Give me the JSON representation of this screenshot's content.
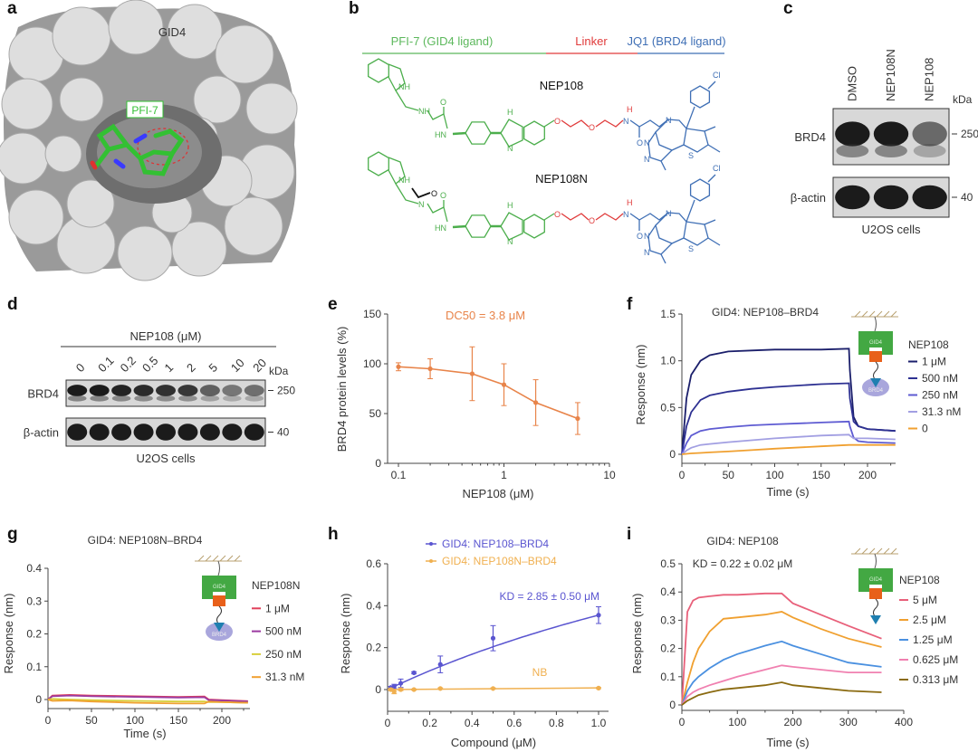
{
  "panel_labels": [
    "a",
    "b",
    "c",
    "d",
    "e",
    "f",
    "g",
    "h",
    "i"
  ],
  "a": {
    "protein": "GID4",
    "ligand": "PFI-7",
    "ligand_color": "#3cc23c"
  },
  "b": {
    "segments": [
      {
        "label": "PFI-7 (GID4 ligand)",
        "color": "#5cb85c"
      },
      {
        "label": "Linker",
        "color": "#e03a3a"
      },
      {
        "label": "JQ1 (BRD4 ligand)",
        "color": "#3f6fb5"
      }
    ],
    "compounds": [
      {
        "name": "NEP108",
        "atoms": [
          "NH",
          "NH",
          "O",
          "HN",
          "H",
          "N",
          "O",
          "O",
          "H",
          "N",
          "O",
          "N",
          "N",
          "N",
          "S",
          "Cl"
        ]
      },
      {
        "name": "NEP108N",
        "atoms": [
          "NH",
          "N",
          "O",
          "HN",
          "H",
          "N",
          "O",
          "O",
          "H",
          "N",
          "O",
          "N",
          "N",
          "N",
          "S",
          "Cl",
          "O"
        ]
      }
    ]
  },
  "c": {
    "lanes": [
      "DMSO",
      "NEP108N",
      "NEP108"
    ],
    "rows": [
      "BRD4",
      "β-actin"
    ],
    "brd4_band_intensity": [
      1.0,
      1.0,
      0.45
    ],
    "kda_label": "kDa",
    "markers": [
      "250",
      "40"
    ],
    "caption": "U2OS cells"
  },
  "d": {
    "title": "NEP108 (μM)",
    "lanes": [
      "0",
      "0.1",
      "0.2",
      "0.5",
      "1",
      "2",
      "5",
      "10",
      "20"
    ],
    "rows": [
      "BRD4",
      "β-actin"
    ],
    "brd4_band_intensity": [
      1.0,
      1.0,
      0.95,
      0.9,
      0.85,
      0.8,
      0.5,
      0.35,
      0.4
    ],
    "kda_label": "kDa",
    "markers": [
      "250",
      "40"
    ],
    "caption": "U2OS cells"
  },
  "chart_data": [
    {
      "panel": "e",
      "type": "scatter",
      "annotation": "DC50 = 3.8 μM",
      "xlabel": "NEP108 (μM)",
      "ylabel": "BRD4 protein levels (%)",
      "x_scale": "log",
      "xlim": [
        0.1,
        10
      ],
      "ylim": [
        0,
        150
      ],
      "x_ticks": [
        0.1,
        1,
        10
      ],
      "x_tick_labels": [
        "0.1",
        "1",
        "10"
      ],
      "y_ticks": [
        0,
        50,
        100,
        150
      ],
      "y_tick_labels": [
        "0",
        "50",
        "100",
        "150"
      ],
      "grid": false,
      "color": "#e8844a",
      "series": [
        {
          "x": [
            0.1,
            0.2,
            0.5,
            1,
            2,
            5
          ],
          "y": [
            97,
            95,
            90,
            79,
            61,
            45
          ],
          "error": [
            4,
            10,
            27,
            21,
            23,
            16
          ]
        }
      ]
    },
    {
      "panel": "f",
      "type": "line",
      "title": "GID4: NEP108–BRD4",
      "xlabel": "Time (s)",
      "ylabel": "Response (nm)",
      "xlim": [
        0,
        230
      ],
      "ylim": [
        0,
        1.5
      ],
      "x_ticks": [
        0,
        50,
        100,
        150,
        200
      ],
      "x_tick_labels": [
        "0",
        "50",
        "100",
        "150",
        "200"
      ],
      "y_ticks": [
        0,
        0.5,
        1.0,
        1.5
      ],
      "y_tick_labels": [
        "0",
        "0.5",
        "1.0",
        "1.5"
      ],
      "legend_title": "NEP108",
      "legend": "right",
      "x": [
        0,
        5,
        10,
        20,
        30,
        50,
        75,
        100,
        150,
        180,
        181,
        185,
        190,
        200,
        230
      ],
      "series": [
        {
          "name": "1 μM",
          "color": "#1b1f6b",
          "y": [
            0,
            0.6,
            0.85,
            1.0,
            1.06,
            1.1,
            1.11,
            1.12,
            1.12,
            1.13,
            0.9,
            0.4,
            0.3,
            0.27,
            0.25
          ]
        },
        {
          "name": "500 nM",
          "color": "#2e3192",
          "y": [
            0,
            0.3,
            0.45,
            0.58,
            0.63,
            0.67,
            0.7,
            0.72,
            0.75,
            0.76,
            0.6,
            0.35,
            0.3,
            0.27,
            0.25
          ]
        },
        {
          "name": "250 nM",
          "color": "#5e5bd2",
          "y": [
            0,
            0.12,
            0.2,
            0.25,
            0.27,
            0.29,
            0.31,
            0.32,
            0.34,
            0.35,
            0.3,
            0.18,
            0.14,
            0.13,
            0.12
          ]
        },
        {
          "name": "31.3 nM",
          "color": "#a29fe2",
          "y": [
            0,
            0.04,
            0.07,
            0.1,
            0.11,
            0.13,
            0.15,
            0.17,
            0.2,
            0.21,
            0.2,
            0.17,
            0.17,
            0.17,
            0.16
          ]
        },
        {
          "name": "0",
          "color": "#f0a030",
          "y": [
            0,
            0.005,
            0.01,
            0.015,
            0.02,
            0.03,
            0.045,
            0.06,
            0.085,
            0.1,
            0.1,
            0.1,
            0.1,
            0.1,
            0.1
          ]
        }
      ],
      "inset": {
        "top": "GID4",
        "bottom": "BRD4"
      }
    },
    {
      "panel": "g",
      "type": "line",
      "title": "GID4: NEP108N–BRD4",
      "xlabel": "Time (s)",
      "ylabel": "Response (nm)",
      "xlim": [
        0,
        230
      ],
      "ylim": [
        0,
        0.4
      ],
      "x_ticks": [
        0,
        50,
        100,
        150,
        200
      ],
      "x_tick_labels": [
        "0",
        "50",
        "100",
        "150",
        "200"
      ],
      "y_ticks": [
        0,
        0.1,
        0.2,
        0.3,
        0.4
      ],
      "y_tick_labels": [
        "0",
        "0.1",
        "0.2",
        "0.3",
        "0.4"
      ],
      "legend_title": "NEP108N",
      "legend": "right",
      "x": [
        0,
        5,
        25,
        50,
        100,
        150,
        180,
        185,
        200,
        230
      ],
      "series": [
        {
          "name": "1 μM",
          "color": "#e0405a",
          "y": [
            0,
            0.012,
            0.014,
            0.012,
            0.01,
            0.008,
            0.009,
            0.0,
            -0.002,
            -0.005
          ]
        },
        {
          "name": "500 nM",
          "color": "#9b3aa0",
          "y": [
            0,
            0.01,
            0.012,
            0.01,
            0.008,
            0.006,
            0.007,
            -0.002,
            -0.003,
            -0.006
          ]
        },
        {
          "name": "250 nM",
          "color": "#d8cf3c",
          "y": [
            0,
            0.002,
            0.0,
            -0.002,
            -0.004,
            -0.006,
            -0.006,
            -0.008,
            -0.008,
            -0.01
          ]
        },
        {
          "name": "31.3 nM",
          "color": "#f0a030",
          "y": [
            0,
            -0.004,
            -0.003,
            -0.006,
            -0.01,
            -0.012,
            -0.012,
            -0.006,
            -0.008,
            -0.01
          ]
        }
      ],
      "inset": {
        "top": "GID4",
        "bottom": "BRD4"
      }
    },
    {
      "panel": "h",
      "type": "scatter",
      "annotation": "KD = 2.85 ± 0.50 μM",
      "annotation2": "NB",
      "xlabel": "Compound (μM)",
      "ylabel": "Response (nm)",
      "xlim": [
        0,
        1.0
      ],
      "ylim": [
        -0.1,
        0.6
      ],
      "x_ticks": [
        0,
        0.2,
        0.4,
        0.6,
        0.8,
        1.0
      ],
      "x_tick_labels": [
        "0",
        "0.2",
        "0.4",
        "0.6",
        "0.8",
        "1.0"
      ],
      "y_ticks": [
        0,
        0.2,
        0.4,
        0.6
      ],
      "y_tick_labels": [
        "0",
        "0.2",
        "0.4",
        "0.6"
      ],
      "legend": "top",
      "series": [
        {
          "name": "GID4: NEP108–BRD4",
          "color": "#5a55d0",
          "x": [
            0.0156,
            0.03125,
            0.0625,
            0.125,
            0.25,
            0.5,
            1.0
          ],
          "y": [
            0.01,
            0.015,
            0.03,
            0.08,
            0.12,
            0.245,
            0.355
          ],
          "error": [
            0.005,
            0.01,
            0.02,
            0.005,
            0.04,
            0.06,
            0.04
          ]
        },
        {
          "name": "GID4: NEP108N–BRD4",
          "color": "#f0b050",
          "x": [
            0.0156,
            0.03125,
            0.0625,
            0.125,
            0.25,
            0.5,
            1.0
          ],
          "y": [
            0,
            -0.01,
            0,
            0,
            0.005,
            0.005,
            0.007
          ],
          "error": [
            0.005,
            0.01,
            0.005,
            0.003,
            0.003,
            0.003,
            0.003
          ]
        }
      ]
    },
    {
      "panel": "i",
      "type": "line",
      "title": "GID4: NEP108",
      "annotation": "KD = 0.22 ± 0.02 μM",
      "xlabel": "Time (s)",
      "ylabel": "Response (nm)",
      "xlim": [
        0,
        400
      ],
      "ylim": [
        0,
        0.5
      ],
      "x_ticks": [
        0,
        100,
        200,
        300,
        400
      ],
      "x_tick_labels": [
        "0",
        "100",
        "200",
        "300",
        "400"
      ],
      "y_ticks": [
        0,
        0.1,
        0.2,
        0.3,
        0.4,
        0.5
      ],
      "y_tick_labels": [
        "0",
        "0.1",
        "0.2",
        "0.3",
        "0.4",
        "0.5"
      ],
      "legend_title": "NEP108",
      "legend": "right",
      "x": [
        0,
        10,
        20,
        30,
        50,
        75,
        100,
        150,
        180,
        200,
        250,
        300,
        360
      ],
      "series": [
        {
          "name": "5 μM",
          "color": "#e8607a",
          "y": [
            0,
            0.33,
            0.37,
            0.38,
            0.385,
            0.39,
            0.39,
            0.395,
            0.395,
            0.36,
            0.32,
            0.28,
            0.235
          ]
        },
        {
          "name": "2.5 μM",
          "color": "#f0a030",
          "y": [
            0,
            0.08,
            0.15,
            0.2,
            0.26,
            0.305,
            0.31,
            0.32,
            0.33,
            0.31,
            0.27,
            0.235,
            0.205
          ]
        },
        {
          "name": "1.25 μM",
          "color": "#4a90e0",
          "y": [
            0,
            0.05,
            0.08,
            0.1,
            0.13,
            0.16,
            0.18,
            0.21,
            0.225,
            0.21,
            0.18,
            0.15,
            0.135
          ]
        },
        {
          "name": "0.625 μM",
          "color": "#f080b0",
          "y": [
            0,
            0.03,
            0.045,
            0.055,
            0.07,
            0.085,
            0.1,
            0.125,
            0.14,
            0.135,
            0.125,
            0.115,
            0.115
          ]
        },
        {
          "name": "0.313 μM",
          "color": "#8a6a10",
          "y": [
            0,
            0.015,
            0.025,
            0.035,
            0.045,
            0.055,
            0.06,
            0.07,
            0.08,
            0.07,
            0.06,
            0.05,
            0.045
          ]
        }
      ],
      "inset": {
        "top": "GID4"
      }
    }
  ]
}
